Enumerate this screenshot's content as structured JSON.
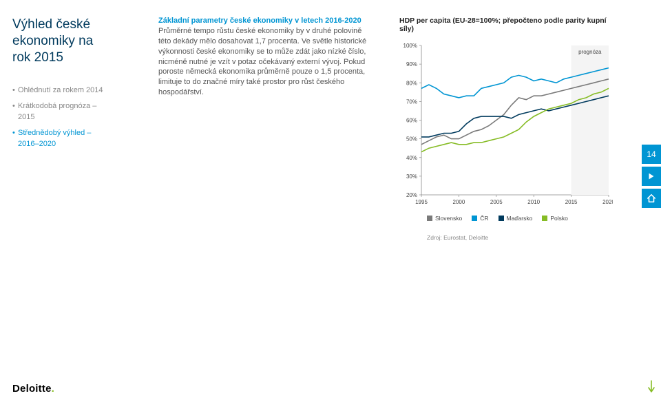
{
  "sidebar": {
    "title": "Výhled české ekonomiky na rok 2015",
    "items": [
      {
        "label": "Ohlédnutí za rokem 2014",
        "active": false
      },
      {
        "label": "Krátkodobá prognóza – 2015",
        "active": false
      },
      {
        "label": "Střednědobý výhled – 2016–2020",
        "active": true
      }
    ]
  },
  "body": {
    "heading": "Základní parametry české ekonomiky v letech 2016-2020",
    "paragraph": "Průměrné tempo růstu české ekonomiky by v druhé polovině této dekády mělo dosahovat 1,7 procenta. Ve světle historické výkonnosti české ekonomiky se to může zdát jako nízké číslo, nicméně nutné je vzít v potaz očekávaný externí vývoj. Pokud poroste německá ekonomika průměrně pouze o 1,5 procenta, limituje to do značné míry také prostor pro růst českého hospodářství."
  },
  "chart": {
    "title": "HDP per capita (EU-28=100%; přepočteno podle parity kupní síly)",
    "type": "line",
    "xlim": [
      1995,
      2020
    ],
    "ylim": [
      20,
      100
    ],
    "ytick_step": 10,
    "x_ticks": [
      1995,
      2000,
      2005,
      2010,
      2015,
      2020
    ],
    "y_ticks": [
      20,
      30,
      40,
      50,
      60,
      70,
      80,
      90,
      100
    ],
    "forecast_start_x": 2015,
    "forecast_label": "prognóza",
    "background_color": "#ffffff",
    "axis_color": "#888888",
    "label_fontsize": 8,
    "line_width": 1.6,
    "series": [
      {
        "name": "Slovensko",
        "color": "#7a7a7a",
        "points": [
          [
            1995,
            47
          ],
          [
            1996,
            49
          ],
          [
            1997,
            51
          ],
          [
            1998,
            52
          ],
          [
            1999,
            50
          ],
          [
            2000,
            50
          ],
          [
            2001,
            52
          ],
          [
            2002,
            54
          ],
          [
            2003,
            55
          ],
          [
            2004,
            57
          ],
          [
            2005,
            60
          ],
          [
            2006,
            63
          ],
          [
            2007,
            68
          ],
          [
            2008,
            72
          ],
          [
            2009,
            71
          ],
          [
            2010,
            73
          ],
          [
            2011,
            73
          ],
          [
            2012,
            74
          ],
          [
            2013,
            75
          ],
          [
            2014,
            76
          ],
          [
            2015,
            77
          ],
          [
            2016,
            78
          ],
          [
            2017,
            79
          ],
          [
            2018,
            80
          ],
          [
            2019,
            81
          ],
          [
            2020,
            82
          ]
        ]
      },
      {
        "name": "ČR",
        "color": "#0095d3",
        "points": [
          [
            1995,
            77
          ],
          [
            1996,
            79
          ],
          [
            1997,
            77
          ],
          [
            1998,
            74
          ],
          [
            1999,
            73
          ],
          [
            2000,
            72
          ],
          [
            2001,
            73
          ],
          [
            2002,
            73
          ],
          [
            2003,
            77
          ],
          [
            2004,
            78
          ],
          [
            2005,
            79
          ],
          [
            2006,
            80
          ],
          [
            2007,
            83
          ],
          [
            2008,
            84
          ],
          [
            2009,
            83
          ],
          [
            2010,
            81
          ],
          [
            2011,
            82
          ],
          [
            2012,
            81
          ],
          [
            2013,
            80
          ],
          [
            2014,
            82
          ],
          [
            2015,
            83
          ],
          [
            2016,
            84
          ],
          [
            2017,
            85
          ],
          [
            2018,
            86
          ],
          [
            2019,
            87
          ],
          [
            2020,
            88
          ]
        ]
      },
      {
        "name": "Maďarsko",
        "color": "#003a5d",
        "points": [
          [
            1995,
            51
          ],
          [
            1996,
            51
          ],
          [
            1997,
            52
          ],
          [
            1998,
            53
          ],
          [
            1999,
            53
          ],
          [
            2000,
            54
          ],
          [
            2001,
            58
          ],
          [
            2002,
            61
          ],
          [
            2003,
            62
          ],
          [
            2004,
            62
          ],
          [
            2005,
            62
          ],
          [
            2006,
            62
          ],
          [
            2007,
            61
          ],
          [
            2008,
            63
          ],
          [
            2009,
            64
          ],
          [
            2010,
            65
          ],
          [
            2011,
            66
          ],
          [
            2012,
            65
          ],
          [
            2013,
            66
          ],
          [
            2014,
            67
          ],
          [
            2015,
            68
          ],
          [
            2016,
            69
          ],
          [
            2017,
            70
          ],
          [
            2018,
            71
          ],
          [
            2019,
            72
          ],
          [
            2020,
            73
          ]
        ]
      },
      {
        "name": "Polsko",
        "color": "#86bc25",
        "points": [
          [
            1995,
            43
          ],
          [
            1996,
            45
          ],
          [
            1997,
            46
          ],
          [
            1998,
            47
          ],
          [
            1999,
            48
          ],
          [
            2000,
            47
          ],
          [
            2001,
            47
          ],
          [
            2002,
            48
          ],
          [
            2003,
            48
          ],
          [
            2004,
            49
          ],
          [
            2005,
            50
          ],
          [
            2006,
            51
          ],
          [
            2007,
            53
          ],
          [
            2008,
            55
          ],
          [
            2009,
            59
          ],
          [
            2010,
            62
          ],
          [
            2011,
            64
          ],
          [
            2012,
            66
          ],
          [
            2013,
            67
          ],
          [
            2014,
            68
          ],
          [
            2015,
            69
          ],
          [
            2016,
            71
          ],
          [
            2017,
            72
          ],
          [
            2018,
            74
          ],
          [
            2019,
            75
          ],
          [
            2020,
            77
          ]
        ]
      }
    ],
    "legend_order": [
      "Slovensko",
      "ČR",
      "Maďarsko",
      "Polsko"
    ],
    "source": "Zdroj: Eurostat, Deloitte"
  },
  "page_number": "14",
  "brand": {
    "name": "Deloitte",
    "dot_color": "#86bc25",
    "text_color": "#000000"
  },
  "scroll_arrow_color": "#86bc25"
}
